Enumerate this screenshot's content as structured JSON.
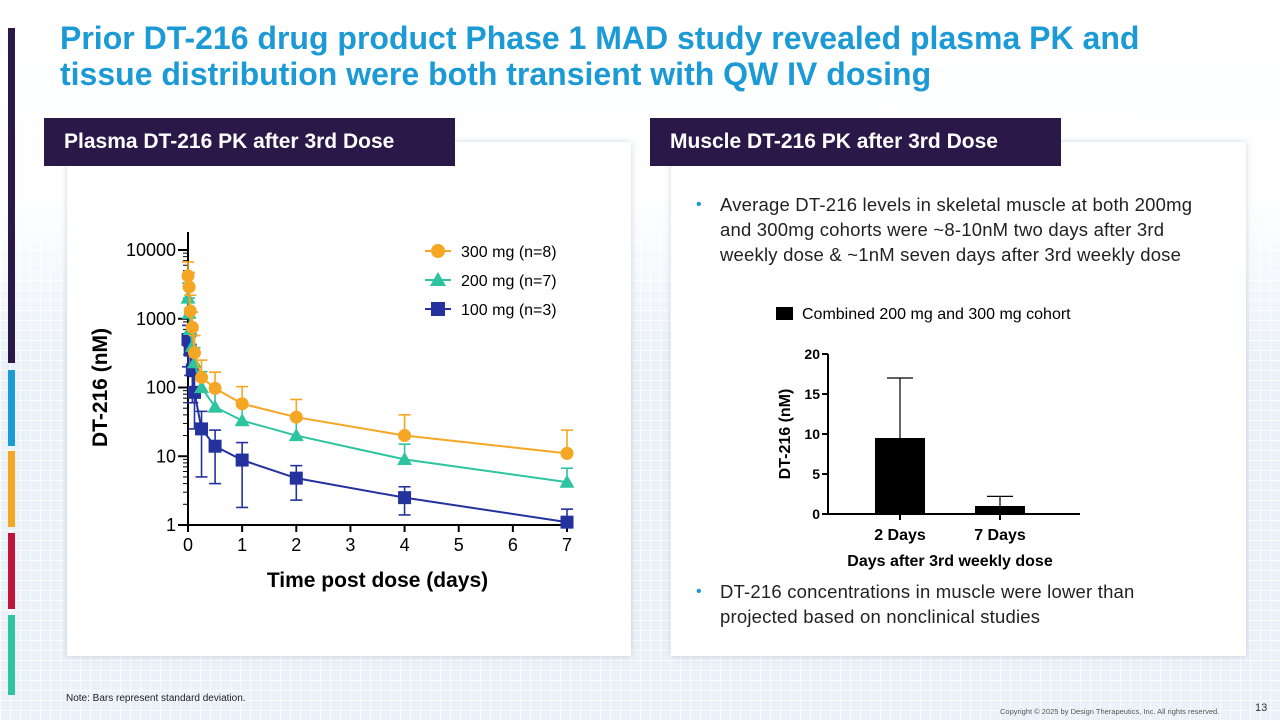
{
  "title": "Prior DT-216 drug product Phase 1 MAD study revealed plasma PK and tissue distribution were both transient with QW IV dosing",
  "colors": {
    "title": "#1b9ad6",
    "header_bg": "#2a1848",
    "series_300": "#f5a623",
    "series_200": "#2ec4a0",
    "series_100": "#24329e",
    "bar": "#000000",
    "left_bars": [
      "#2a1848",
      "#1b9ad6",
      "#f5a623",
      "#c0143c",
      "#2ec4a0"
    ]
  },
  "plasma_panel": {
    "header": "Plasma DT-216 PK after 3rd Dose"
  },
  "muscle_panel": {
    "header": "Muscle DT-216 PK after 3rd Dose",
    "bullets": [
      "Average DT-216 levels in skeletal muscle at both 200mg and 300mg cohorts were ~8-10nM two days after 3rd weekly dose & ~1nM seven days after 3rd weekly dose",
      "DT-216 concentrations in muscle were lower than projected based on nonclinical studies"
    ]
  },
  "chart_data": [
    {
      "type": "line",
      "title": "Plasma DT-216 PK after 3rd Dose",
      "xlabel": "Time post dose (days)",
      "ylabel": "DT-216 (nM)",
      "yscale": "log",
      "xlim": [
        0,
        7
      ],
      "ylim": [
        1,
        10000
      ],
      "xticks": [
        "0",
        "1",
        "2",
        "3",
        "4",
        "5",
        "6",
        "7"
      ],
      "yticks": [
        "1",
        "10",
        "100",
        "1000",
        "10000"
      ],
      "legend_position": "top-right",
      "series": [
        {
          "name": "300 mg (n=8)",
          "marker": "circle",
          "x": [
            0,
            0.02,
            0.04,
            0.08,
            0.12,
            0.25,
            0.5,
            1,
            2,
            4,
            7
          ],
          "y": [
            4200,
            2900,
            1300,
            750,
            320,
            140,
            97,
            58,
            37,
            20,
            11
          ],
          "err": [
            2500,
            1800,
            900,
            500,
            250,
            110,
            70,
            45,
            30,
            20,
            13
          ]
        },
        {
          "name": "200 mg (n=7)",
          "marker": "triangle",
          "x": [
            0,
            0.02,
            0.04,
            0.08,
            0.12,
            0.25,
            0.5,
            1,
            2,
            4,
            7
          ],
          "y": [
            2000,
            1200,
            700,
            400,
            230,
            100,
            52,
            33,
            20,
            9,
            4.2
          ],
          "err": [
            1300,
            800,
            500,
            280,
            150,
            70,
            35,
            20,
            14,
            6,
            2.5
          ]
        },
        {
          "name": "100 mg (n=3)",
          "marker": "square",
          "x": [
            0,
            0.04,
            0.08,
            0.12,
            0.25,
            0.5,
            1,
            2,
            4,
            7
          ],
          "y": [
            500,
            350,
            180,
            85,
            25,
            14,
            8.8,
            4.8,
            2.5,
            1.1
          ],
          "err": [
            300,
            200,
            120,
            60,
            20,
            10,
            7,
            2.5,
            1.1,
            0.6
          ]
        }
      ]
    },
    {
      "type": "bar",
      "title": "Muscle DT-216 PK after 3rd Dose",
      "legend": "Combined 200 mg and 300 mg cohort",
      "xlabel": "Days after 3rd weekly dose",
      "ylabel": "DT-216 (nM)",
      "categories": [
        "2 Days",
        "7 Days"
      ],
      "values": [
        9.5,
        1.0
      ],
      "err": [
        7.5,
        1.2
      ],
      "ylim": [
        0,
        20
      ],
      "yticks": [
        "0",
        "5",
        "10",
        "15",
        "20"
      ]
    }
  ],
  "note": "Note: Bars represent standard deviation.",
  "copyright": "Copyright © 2025 by Design Therapeutics, Inc. All rights reserved.",
  "page_number": "13"
}
